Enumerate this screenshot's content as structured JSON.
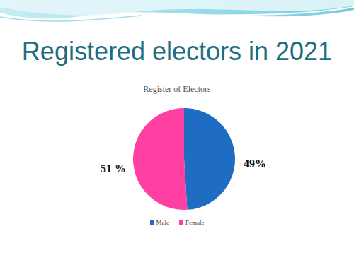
{
  "slide_title": "Registered electors in 2021",
  "chart_data": {
    "type": "pie",
    "title": "Register of Electors",
    "categories": [
      "Male",
      "Female"
    ],
    "values": [
      49,
      51
    ],
    "value_labels": [
      "49%",
      "51 %"
    ],
    "colors": [
      "#1f6dc2",
      "#ff3fa2"
    ],
    "legend": "bottom",
    "data_labels": true
  }
}
